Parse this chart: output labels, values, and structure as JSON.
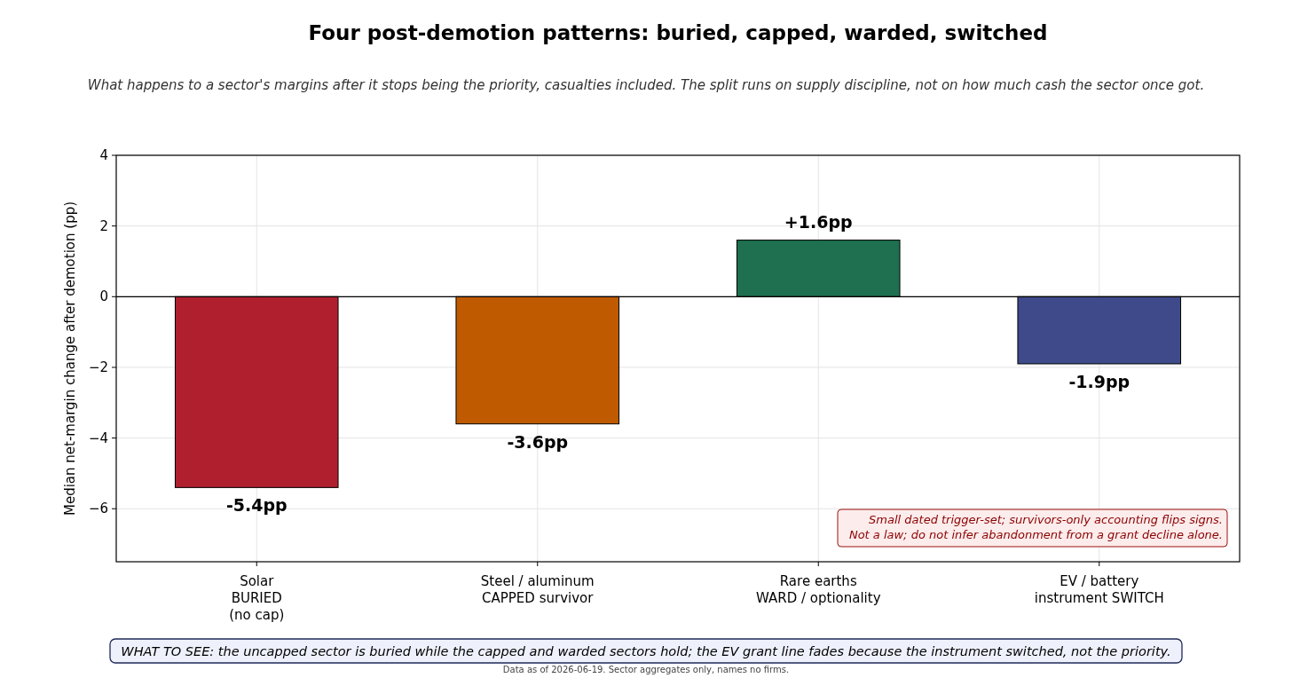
{
  "chart_data": {
    "type": "bar",
    "title": "Four post-demotion patterns: buried, capped, warded, switched",
    "subtitle": "What happens to a sector's margins after it stops being the priority, casualties included. The split runs on supply discipline, not on how much cash the sector once got.",
    "ylabel": "Median net-margin change after demotion (pp)",
    "categories": [
      "Solar\nBURIED\n(no cap)",
      "Steel / aluminum\nCAPPED survivor",
      "Rare earths\nWARD / optionality",
      "EV / battery\ninstrument SWITCH"
    ],
    "values": [
      -5.4,
      -3.6,
      1.6,
      -1.9
    ],
    "colors": [
      "#b01f2e",
      "#bf5a00",
      "#1f7050",
      "#3f4a8a"
    ],
    "value_labels": [
      "-5.4pp",
      "-3.6pp",
      "+1.6pp",
      "-1.9pp"
    ],
    "ylim": [
      -7.5,
      4
    ],
    "yticks": [
      {
        "value": -6,
        "label": "−6"
      },
      {
        "value": -4,
        "label": "−4"
      },
      {
        "value": -2,
        "label": "−2"
      },
      0,
      2,
      4
    ],
    "grid": true,
    "ref_lines": [
      {
        "axis": "y",
        "value": 0,
        "color": "#000000"
      }
    ],
    "annotations": [
      "Small dated trigger-set; survivors-only accounting flips signs.\nNot a law; do not infer abandonment from a grant decline alone.",
      "WHAT TO SEE: the uncapped sector is buried while the capped and warded sectors hold; the EV grant line fades because the instrument switched, not the priority.",
      "Data as of 2026-06-19. Sector aggregates only, names no firms."
    ]
  }
}
